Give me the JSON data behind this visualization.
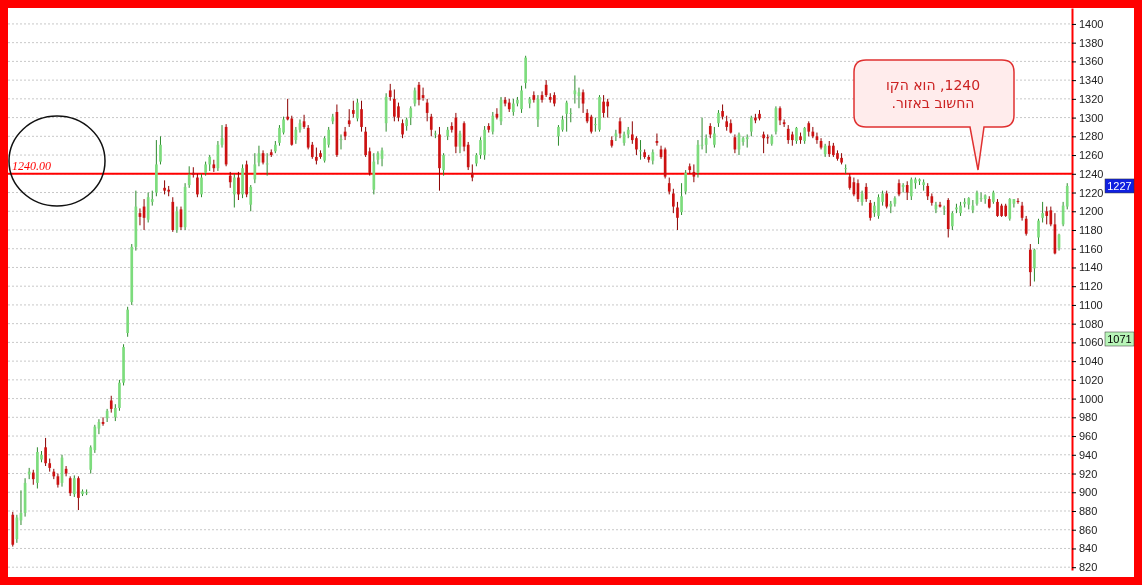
{
  "chart_data": {
    "type": "candlestick",
    "categories": [
      null,
      null,
      null,
      null,
      null,
      null,
      null,
      null,
      null,
      null,
      null,
      null,
      null,
      null,
      null,
      null,
      null,
      null,
      null,
      null,
      null,
      null,
      null,
      null,
      null,
      null,
      null,
      null,
      null,
      null,
      null,
      null,
      null,
      null,
      null,
      null,
      null,
      null,
      null,
      null,
      null,
      null,
      null,
      null,
      null,
      null,
      null,
      null,
      null,
      null,
      null,
      null,
      null,
      null,
      null,
      null,
      null,
      null,
      null,
      null,
      null,
      null,
      null,
      null,
      null,
      null,
      null,
      null,
      null,
      null,
      null,
      null,
      null,
      null,
      null,
      null,
      null,
      null,
      null,
      null,
      null,
      null,
      null,
      null,
      null,
      null,
      null,
      null,
      null,
      null,
      null,
      null,
      null,
      null,
      null,
      null,
      null,
      null,
      null,
      null,
      null,
      null,
      null,
      null,
      null,
      null,
      null,
      null,
      null,
      null,
      null,
      null,
      null,
      null,
      null,
      null,
      null,
      null,
      null,
      null,
      null,
      null,
      null,
      null,
      null,
      null,
      null,
      null,
      null,
      null,
      null,
      null,
      null,
      null,
      null,
      null,
      null,
      null,
      null,
      null,
      null,
      null,
      null,
      null,
      null,
      null,
      null,
      null,
      null,
      null,
      null,
      null,
      null,
      null,
      null,
      null,
      null,
      null,
      null,
      null,
      null,
      null,
      null,
      null,
      null,
      null,
      null,
      null,
      null,
      null,
      null,
      null,
      null,
      null,
      null,
      null,
      null,
      null,
      null,
      null,
      null,
      null,
      null,
      null,
      null,
      null,
      null,
      null,
      null,
      null,
      null,
      null,
      null,
      null,
      null,
      null,
      null,
      null,
      null,
      null,
      null,
      null,
      null,
      null,
      null,
      null,
      null,
      null,
      null,
      null,
      null,
      null,
      null,
      null,
      null,
      null,
      null,
      null,
      null,
      null,
      null,
      null,
      null,
      null,
      null,
      null,
      null,
      null,
      null,
      null,
      null,
      null,
      null,
      null,
      null,
      null,
      null,
      null,
      null,
      null,
      null,
      null,
      null,
      null,
      null,
      null,
      null,
      null,
      null,
      null,
      null,
      null,
      null,
      null,
      null,
      null,
      null,
      null
    ],
    "ohlc": [
      [
        876,
        879,
        842,
        844
      ],
      [
        850,
        876,
        846,
        873
      ],
      [
        870,
        902,
        865,
        878
      ],
      [
        878,
        915,
        874,
        910
      ],
      [
        919,
        926,
        914,
        922
      ],
      [
        921,
        924,
        908,
        914
      ],
      [
        910,
        948,
        904,
        943
      ],
      [
        935,
        944,
        932,
        940
      ],
      [
        948,
        958,
        928,
        931
      ],
      [
        931,
        936,
        922,
        926
      ],
      [
        922,
        925,
        914,
        917
      ],
      [
        917,
        920,
        905,
        908
      ],
      [
        910,
        940,
        906,
        937
      ],
      [
        925,
        928,
        917,
        920
      ],
      [
        915,
        917,
        896,
        899
      ],
      [
        898,
        918,
        895,
        915
      ],
      [
        915,
        917,
        881,
        894
      ],
      [
        898,
        903,
        896,
        901
      ],
      [
        899,
        903,
        897,
        900
      ],
      [
        924,
        950,
        920,
        948
      ],
      [
        945,
        972,
        942,
        970
      ],
      [
        968,
        978,
        962,
        975
      ],
      [
        975,
        980,
        971,
        973
      ],
      [
        979,
        989,
        975,
        987
      ],
      [
        998,
        1003,
        985,
        989
      ],
      [
        980,
        994,
        976,
        990
      ],
      [
        990,
        1020,
        987,
        1017
      ],
      [
        1017,
        1058,
        1014,
        1055
      ],
      [
        1070,
        1098,
        1066,
        1095
      ],
      [
        1103,
        1165,
        1100,
        1162
      ],
      [
        1162,
        1222,
        1158,
        1205
      ],
      [
        1198,
        1203,
        1185,
        1194
      ],
      [
        1205,
        1213,
        1180,
        1193
      ],
      [
        1191,
        1220,
        1188,
        1215
      ],
      [
        1210,
        1222,
        1206,
        1213
      ],
      [
        1220,
        1276,
        1216,
        1250
      ],
      [
        1253,
        1280,
        1250,
        1271
      ],
      [
        1225,
        1233,
        1218,
        1222
      ],
      [
        1223,
        1227,
        1216,
        1221
      ],
      [
        1210,
        1215,
        1178,
        1180
      ],
      [
        1180,
        1205,
        1177,
        1200
      ],
      [
        1202,
        1205,
        1180,
        1183
      ],
      [
        1183,
        1230,
        1180,
        1226
      ],
      [
        1228,
        1248,
        1225,
        1239
      ],
      [
        1241,
        1247,
        1236,
        1239
      ],
      [
        1236,
        1240,
        1215,
        1218
      ],
      [
        1218,
        1240,
        1215,
        1236
      ],
      [
        1241,
        1253,
        1238,
        1250
      ],
      [
        1250,
        1260,
        1243,
        1258
      ],
      [
        1250,
        1255,
        1242,
        1246
      ],
      [
        1246,
        1275,
        1243,
        1271
      ],
      [
        1271,
        1292,
        1268,
        1278
      ],
      [
        1290,
        1293,
        1248,
        1250
      ],
      [
        1238,
        1242,
        1225,
        1231
      ],
      [
        1218,
        1240,
        1204,
        1236
      ],
      [
        1236,
        1242,
        1212,
        1218
      ],
      [
        1218,
        1250,
        1214,
        1246
      ],
      [
        1250,
        1254,
        1215,
        1218
      ],
      [
        1207,
        1228,
        1200,
        1226
      ],
      [
        1234,
        1262,
        1230,
        1250
      ],
      [
        1252,
        1270,
        1248,
        1262
      ],
      [
        1262,
        1265,
        1250,
        1252
      ],
      [
        1250,
        1262,
        1238,
        1251
      ],
      [
        1263,
        1266,
        1258,
        1260
      ],
      [
        1264,
        1275,
        1262,
        1271
      ],
      [
        1273,
        1292,
        1270,
        1289
      ],
      [
        1284,
        1301,
        1282,
        1298
      ],
      [
        1301,
        1320,
        1297,
        1298
      ],
      [
        1299,
        1302,
        1270,
        1271
      ],
      [
        1276,
        1290,
        1272,
        1287
      ],
      [
        1287,
        1298,
        1284,
        1294
      ],
      [
        1296,
        1303,
        1288,
        1290
      ],
      [
        1289,
        1292,
        1266,
        1268
      ],
      [
        1271,
        1274,
        1256,
        1258
      ],
      [
        1258,
        1268,
        1250,
        1254
      ],
      [
        1262,
        1265,
        1256,
        1258
      ],
      [
        1254,
        1280,
        1252,
        1278
      ],
      [
        1271,
        1290,
        1268,
        1287
      ],
      [
        1296,
        1304,
        1293,
        1301
      ],
      [
        1306,
        1314,
        1258,
        1260
      ],
      [
        1276,
        1282,
        1266,
        1277
      ],
      [
        1285,
        1290,
        1276,
        1280
      ],
      [
        1297,
        1309,
        1290,
        1293
      ],
      [
        1308,
        1318,
        1300,
        1304
      ],
      [
        1299,
        1320,
        1296,
        1316
      ],
      [
        1309,
        1318,
        1285,
        1290
      ],
      [
        1285,
        1290,
        1258,
        1260
      ],
      [
        1264,
        1268,
        1238,
        1241
      ],
      [
        1223,
        1262,
        1218,
        1253
      ],
      [
        1255,
        1264,
        1250,
        1262
      ],
      [
        1256,
        1268,
        1248,
        1265
      ],
      [
        1294,
        1326,
        1285,
        1322
      ],
      [
        1329,
        1336,
        1318,
        1322
      ],
      [
        1320,
        1330,
        1296,
        1301
      ],
      [
        1312,
        1316,
        1296,
        1300
      ],
      [
        1294,
        1298,
        1278,
        1282
      ],
      [
        1291,
        1300,
        1286,
        1298
      ],
      [
        1300,
        1312,
        1292,
        1310
      ],
      [
        1315,
        1332,
        1312,
        1329
      ],
      [
        1335,
        1338,
        1313,
        1319
      ],
      [
        1324,
        1332,
        1318,
        1321
      ],
      [
        1316,
        1320,
        1296,
        1305
      ],
      [
        1301,
        1304,
        1280,
        1287
      ],
      [
        1282,
        1286,
        1278,
        1283
      ],
      [
        1282,
        1290,
        1222,
        1246
      ],
      [
        1244,
        1262,
        1238,
        1260
      ],
      [
        1280,
        1290,
        1276,
        1287
      ],
      [
        1291,
        1295,
        1284,
        1287
      ],
      [
        1300,
        1305,
        1262,
        1269
      ],
      [
        1269,
        1286,
        1262,
        1283
      ],
      [
        1294,
        1296,
        1264,
        1269
      ],
      [
        1271,
        1274,
        1244,
        1247
      ],
      [
        1241,
        1250,
        1232,
        1236
      ],
      [
        1251,
        1262,
        1248,
        1260
      ],
      [
        1260,
        1279,
        1256,
        1276
      ],
      [
        1260,
        1291,
        1255,
        1287
      ],
      [
        1291,
        1294,
        1284,
        1287
      ],
      [
        1285,
        1306,
        1282,
        1302
      ],
      [
        1304,
        1310,
        1298,
        1300
      ],
      [
        1296,
        1322,
        1292,
        1319
      ],
      [
        1319,
        1322,
        1312,
        1315
      ],
      [
        1316,
        1320,
        1306,
        1309
      ],
      [
        1306,
        1320,
        1302,
        1315
      ],
      [
        1315,
        1322,
        1312,
        1319
      ],
      [
        1309,
        1334,
        1305,
        1329
      ],
      [
        1337,
        1366,
        1331,
        1364
      ],
      [
        1315,
        1322,
        1310,
        1320
      ],
      [
        1324,
        1328,
        1316,
        1319
      ],
      [
        1298,
        1324,
        1290,
        1320
      ],
      [
        1324,
        1328,
        1316,
        1319
      ],
      [
        1335,
        1340,
        1322,
        1324
      ],
      [
        1322,
        1326,
        1316,
        1319
      ],
      [
        1324,
        1327,
        1312,
        1315
      ],
      [
        1280,
        1292,
        1270,
        1290
      ],
      [
        1287,
        1302,
        1285,
        1298
      ],
      [
        1304,
        1318,
        1285,
        1316
      ],
      [
        1304,
        1310,
        1295,
        1305
      ],
      [
        1325,
        1345,
        1315,
        1329
      ],
      [
        1323,
        1332,
        1310,
        1327
      ],
      [
        1327,
        1330,
        1305,
        1315
      ],
      [
        1305,
        1309,
        1294,
        1296
      ],
      [
        1301,
        1303,
        1283,
        1285
      ],
      [
        1293,
        1300,
        1285,
        1293
      ],
      [
        1287,
        1324,
        1285,
        1322
      ],
      [
        1317,
        1324,
        1300,
        1305
      ],
      [
        1317,
        1320,
        1300,
        1312
      ],
      [
        1276,
        1280,
        1268,
        1270
      ],
      [
        1280,
        1287,
        1275,
        1283
      ],
      [
        1296,
        1300,
        1278,
        1283
      ],
      [
        1273,
        1285,
        1270,
        1282
      ],
      [
        1282,
        1290,
        1278,
        1287
      ],
      [
        1282,
        1296,
        1272,
        1276
      ],
      [
        1278,
        1280,
        1260,
        1266
      ],
      [
        1265,
        1276,
        1255,
        1265
      ],
      [
        1263,
        1266,
        1256,
        1258
      ],
      [
        1258,
        1260,
        1252,
        1255
      ],
      [
        1254,
        1266,
        1250,
        1263
      ],
      [
        1275,
        1283,
        1270,
        1273
      ],
      [
        1266,
        1270,
        1256,
        1258
      ],
      [
        1266,
        1268,
        1235,
        1237
      ],
      [
        1230,
        1236,
        1218,
        1221
      ],
      [
        1219,
        1224,
        1198,
        1205
      ],
      [
        1204,
        1210,
        1180,
        1193
      ],
      [
        1199,
        1230,
        1196,
        1216
      ],
      [
        1221,
        1244,
        1218,
        1241
      ],
      [
        1248,
        1251,
        1240,
        1244
      ],
      [
        1242,
        1250,
        1231,
        1237
      ],
      [
        1241,
        1276,
        1236,
        1271
      ],
      [
        1271,
        1300,
        1266,
        1271
      ],
      [
        1271,
        1282,
        1262,
        1278
      ],
      [
        1291,
        1294,
        1278,
        1282
      ],
      [
        1271,
        1290,
        1268,
        1283
      ],
      [
        1294,
        1308,
        1290,
        1305
      ],
      [
        1307,
        1314,
        1298,
        1301
      ],
      [
        1296,
        1302,
        1286,
        1290
      ],
      [
        1294,
        1298,
        1283,
        1284
      ],
      [
        1279,
        1282,
        1262,
        1266
      ],
      [
        1266,
        1284,
        1260,
        1282
      ],
      [
        1274,
        1280,
        1270,
        1278
      ],
      [
        1277,
        1282,
        1268,
        1279
      ],
      [
        1285,
        1302,
        1280,
        1300
      ],
      [
        1300,
        1304,
        1294,
        1297
      ],
      [
        1304,
        1308,
        1297,
        1299
      ],
      [
        1282,
        1285,
        1262,
        1278
      ],
      [
        1279,
        1282,
        1272,
        1278
      ],
      [
        1272,
        1282,
        1270,
        1280
      ],
      [
        1285,
        1312,
        1282,
        1310
      ],
      [
        1310,
        1312,
        1292,
        1297
      ],
      [
        1295,
        1298,
        1290,
        1293
      ],
      [
        1288,
        1292,
        1272,
        1276
      ],
      [
        1282,
        1285,
        1270,
        1276
      ],
      [
        1275,
        1290,
        1272,
        1289
      ],
      [
        1280,
        1284,
        1272,
        1276
      ],
      [
        1275,
        1290,
        1272,
        1289
      ],
      [
        1294,
        1296,
        1280,
        1285
      ],
      [
        1285,
        1290,
        1278,
        1280
      ],
      [
        1280,
        1284,
        1272,
        1276
      ],
      [
        1275,
        1278,
        1266,
        1268
      ],
      [
        1261,
        1272,
        1258,
        1270
      ],
      [
        1270,
        1275,
        1258,
        1261
      ],
      [
        1270,
        1273,
        1258,
        1260
      ],
      [
        1262,
        1265,
        1254,
        1256
      ],
      [
        1257,
        1262,
        1250,
        1252
      ],
      [
        1246,
        1250,
        1240,
        1246
      ],
      [
        1237,
        1240,
        1223,
        1225
      ],
      [
        1231,
        1236,
        1216,
        1218
      ],
      [
        1230,
        1234,
        1210,
        1213
      ],
      [
        1210,
        1222,
        1206,
        1219
      ],
      [
        1226,
        1230,
        1210,
        1213
      ],
      [
        1209,
        1212,
        1190,
        1193
      ],
      [
        1198,
        1210,
        1194,
        1206
      ],
      [
        1195,
        1218,
        1192,
        1215
      ],
      [
        1210,
        1222,
        1206,
        1219
      ],
      [
        1219,
        1222,
        1203,
        1205
      ],
      [
        1205,
        1211,
        1198,
        1208
      ],
      [
        1208,
        1216,
        1205,
        1214
      ],
      [
        1230,
        1234,
        1216,
        1218
      ],
      [
        1226,
        1230,
        1220,
        1228
      ],
      [
        1228,
        1232,
        1212,
        1220
      ],
      [
        1216,
        1236,
        1212,
        1234
      ],
      [
        1230,
        1236,
        1224,
        1234
      ],
      [
        1232,
        1235,
        1228,
        1234
      ],
      [
        1228,
        1234,
        1222,
        1231
      ],
      [
        1227,
        1230,
        1212,
        1216
      ],
      [
        1216,
        1219,
        1206,
        1209
      ],
      [
        1202,
        1210,
        1198,
        1207
      ],
      [
        1207,
        1210,
        1204,
        1205
      ],
      [
        1204,
        1206,
        1196,
        1204
      ],
      [
        1212,
        1214,
        1172,
        1181
      ],
      [
        1184,
        1200,
        1180,
        1198
      ],
      [
        1202,
        1208,
        1198,
        1204
      ],
      [
        1198,
        1210,
        1195,
        1206
      ],
      [
        1208,
        1214,
        1204,
        1210
      ],
      [
        1207,
        1215,
        1202,
        1214
      ],
      [
        1201,
        1212,
        1198,
        1206
      ],
      [
        1208,
        1222,
        1206,
        1220
      ],
      [
        1214,
        1220,
        1210,
        1214
      ],
      [
        1213,
        1218,
        1208,
        1217
      ],
      [
        1213,
        1216,
        1203,
        1204
      ],
      [
        1210,
        1222,
        1208,
        1220
      ],
      [
        1210,
        1213,
        1194,
        1195
      ],
      [
        1206,
        1208,
        1194,
        1195
      ],
      [
        1206,
        1208,
        1194,
        1195
      ],
      [
        1192,
        1214,
        1190,
        1213
      ],
      [
        1208,
        1213,
        1204,
        1213
      ],
      [
        1211,
        1214,
        1208,
        1210
      ],
      [
        1206,
        1210,
        1190,
        1193
      ],
      [
        1192,
        1195,
        1174,
        1176
      ],
      [
        1159,
        1165,
        1120,
        1135
      ],
      [
        1139,
        1160,
        1125,
        1159
      ],
      [
        1172,
        1192,
        1165,
        1190
      ],
      [
        1193,
        1210,
        1188,
        1198
      ],
      [
        1200,
        1205,
        1186,
        1195
      ],
      [
        1201,
        1205,
        1184,
        1186
      ],
      [
        1186,
        1198,
        1154,
        1155
      ],
      [
        1161,
        1176,
        1158,
        1175
      ],
      [
        1186,
        1210,
        1184,
        1206
      ],
      [
        1205,
        1230,
        1202,
        1227
      ]
    ],
    "ylim": [
      817,
      1417
    ],
    "yticks": [
      820,
      840,
      860,
      880,
      900,
      920,
      940,
      960,
      980,
      1000,
      1020,
      1040,
      1060,
      1080,
      1100,
      1120,
      1140,
      1160,
      1180,
      1200,
      1220,
      1240,
      1260,
      1280,
      1300,
      1320,
      1340,
      1360,
      1380,
      1400
    ],
    "grid": "y",
    "ref_lines": [
      {
        "axis": "y",
        "value": 1240,
        "label": "1240.00",
        "color": "#ff0000"
      }
    ],
    "annotations": [
      "1240, הוא הקו  החשוב באזור.",
      "1227",
      "1071"
    ]
  }
}
